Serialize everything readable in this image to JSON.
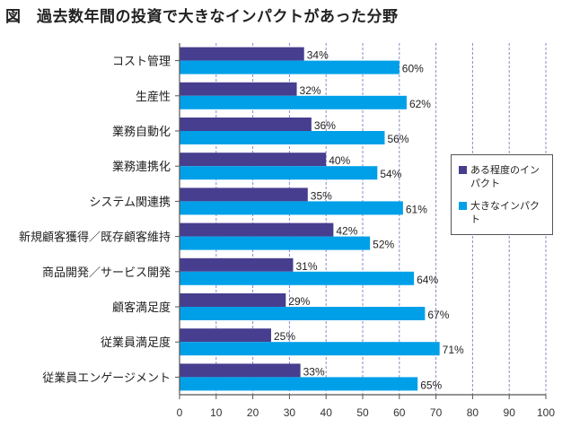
{
  "title": "図　過去数年間の投資で大きなインパクトがあった分野",
  "colors": {
    "series1": "#473e8f",
    "series2": "#00a0e9",
    "grid": "#8a8ac8",
    "axis": "#555555"
  },
  "chart_data": {
    "type": "bar",
    "orientation": "horizontal",
    "categories": [
      "コスト管理",
      "生産性",
      "業務自動化",
      "業務連携化",
      "システム関連携",
      "新規顧客獲得／既存顧客維持",
      "商品開発／サービス開発",
      "顧客満足度",
      "従業員満足度",
      "従業員エンゲージメント"
    ],
    "series": [
      {
        "name": "ある程度のインパクト",
        "values": [
          34,
          32,
          36,
          40,
          35,
          42,
          31,
          29,
          25,
          33
        ]
      },
      {
        "name": "大きなインパクト",
        "values": [
          60,
          62,
          56,
          54,
          61,
          52,
          64,
          67,
          71,
          65
        ]
      }
    ],
    "value_suffix": "%",
    "xlim": [
      0,
      100
    ],
    "xticks": [
      0,
      10,
      20,
      30,
      40,
      50,
      60,
      70,
      80,
      90,
      100
    ],
    "grid": "vertical-dashed",
    "legend_position": "right"
  }
}
